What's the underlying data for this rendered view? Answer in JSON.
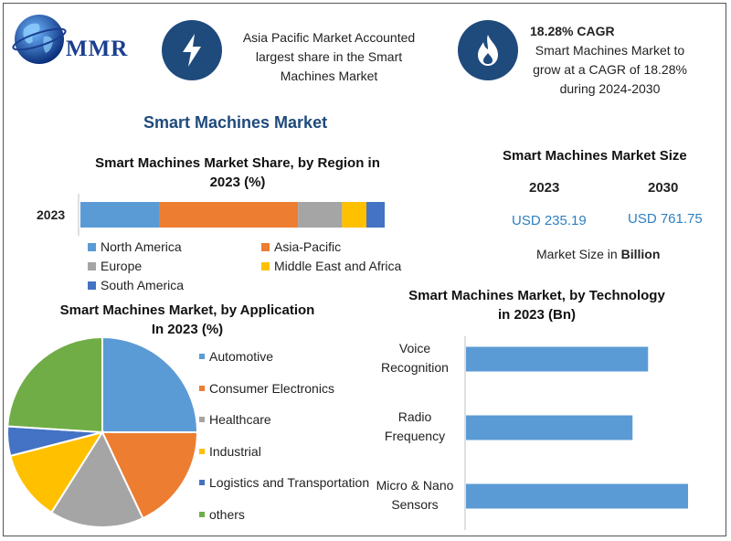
{
  "logo": {
    "text": "MMR"
  },
  "header": {
    "badge1_lines": [
      "Asia Pacific Market Accounted",
      "largest share in the Smart",
      "Machines Market"
    ],
    "badge2_title": "18.28% CAGR",
    "badge2_lines": [
      "Smart Machines Market to",
      "grow at a CAGR of 18.28%",
      "during 2024-2030"
    ]
  },
  "main_title": "Smart Machines Market",
  "size_panel": {
    "title": "Smart Machines Market Size",
    "year1": "2023",
    "value1": "USD 235.19",
    "year2": "2030",
    "value2": "USD 761.75",
    "note_prefix": "Market Size in ",
    "note_bold": "Billion"
  },
  "colors": {
    "blue": "#5b9bd5",
    "orange": "#ed7d31",
    "gray": "#a5a5a5",
    "yellow": "#ffc000",
    "dark_blue": "#4472c4",
    "green": "#70ad47",
    "navy": "#1e4a7c"
  },
  "chart_data": [
    {
      "type": "bar",
      "orientation": "horizontal-stacked",
      "title": "Smart Machines Market Share, by Region in 2023 (%)",
      "title_lines": [
        "Smart Machines Market Share, by Region in",
        "2023 (%)"
      ],
      "categories": [
        "2023"
      ],
      "series": [
        {
          "name": "North America",
          "values": [
            26
          ],
          "color": "#5b9bd5"
        },
        {
          "name": "Asia-Pacific",
          "values": [
            45.5
          ],
          "color": "#ed7d31"
        },
        {
          "name": "Europe",
          "values": [
            14.5
          ],
          "color": "#a5a5a5"
        },
        {
          "name": "Middle East and Africa",
          "values": [
            8
          ],
          "color": "#ffc000"
        },
        {
          "name": "South America",
          "values": [
            6
          ],
          "color": "#4472c4"
        }
      ],
      "xlim": [
        0,
        100
      ],
      "legend": "bottom"
    },
    {
      "type": "pie",
      "title": "Smart Machines Market, by Application In 2023 (%)",
      "title_lines": [
        "Smart Machines Market, by Application",
        "In 2023 (%)"
      ],
      "slices": [
        {
          "name": "Automotive",
          "value": 25,
          "color": "#5b9bd5"
        },
        {
          "name": "Consumer Electronics",
          "value": 18,
          "color": "#ed7d31"
        },
        {
          "name": "Healthcare",
          "value": 16,
          "color": "#a5a5a5"
        },
        {
          "name": "Industrial",
          "value": 12,
          "color": "#ffc000"
        },
        {
          "name": "Logistics and Transportation",
          "value": 5,
          "color": "#4472c4"
        },
        {
          "name": "others",
          "value": 24,
          "color": "#70ad47"
        }
      ],
      "legend": "right"
    },
    {
      "type": "bar",
      "orientation": "horizontal",
      "title": "Smart Machines Market, by Technology in 2023 (Bn)",
      "title_lines": [
        "Smart Machines Market, by Technology",
        "in 2023 (Bn)"
      ],
      "categories": [
        "Voice Recognition",
        "Radio Frequency",
        "Micro & Nano Sensors"
      ],
      "category_lines": [
        [
          "Voice",
          "Recognition"
        ],
        [
          "Radio",
          "Frequency"
        ],
        [
          "Micro & Nano",
          "Sensors"
        ]
      ],
      "values": [
        82,
        75,
        100
      ],
      "color": "#5b9bd5",
      "xlim": [
        0,
        100
      ],
      "axis_labels": false
    }
  ]
}
